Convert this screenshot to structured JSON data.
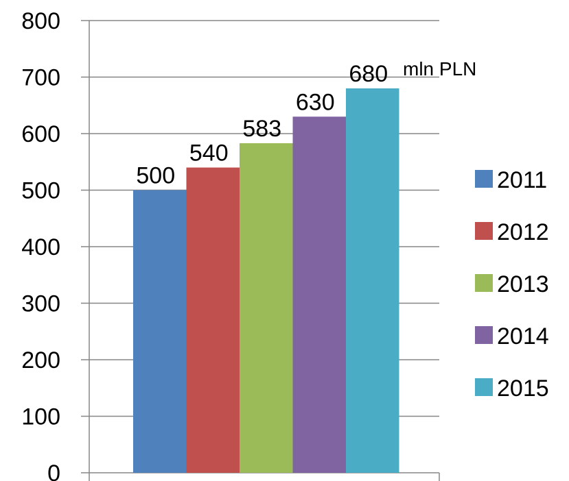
{
  "chart_data": {
    "type": "bar",
    "title": "",
    "xlabel": "",
    "ylabel": "",
    "ylim": [
      0,
      800
    ],
    "yticks": [
      0,
      100,
      200,
      300,
      400,
      500,
      600,
      700,
      800
    ],
    "grid": true,
    "legend_position": "right",
    "unit_annotation": "mln PLN",
    "series": [
      {
        "name": "2011",
        "value": 500,
        "label": "500",
        "color": "#4F81BD"
      },
      {
        "name": "2012",
        "value": 540,
        "label": "540",
        "color": "#C0504D"
      },
      {
        "name": "2013",
        "value": 583,
        "label": "583",
        "color": "#9BBB59"
      },
      {
        "name": "2014",
        "value": 630,
        "label": "630",
        "color": "#8064A2"
      },
      {
        "name": "2015",
        "value": 680,
        "label": "680",
        "color": "#4BACC6"
      }
    ]
  }
}
